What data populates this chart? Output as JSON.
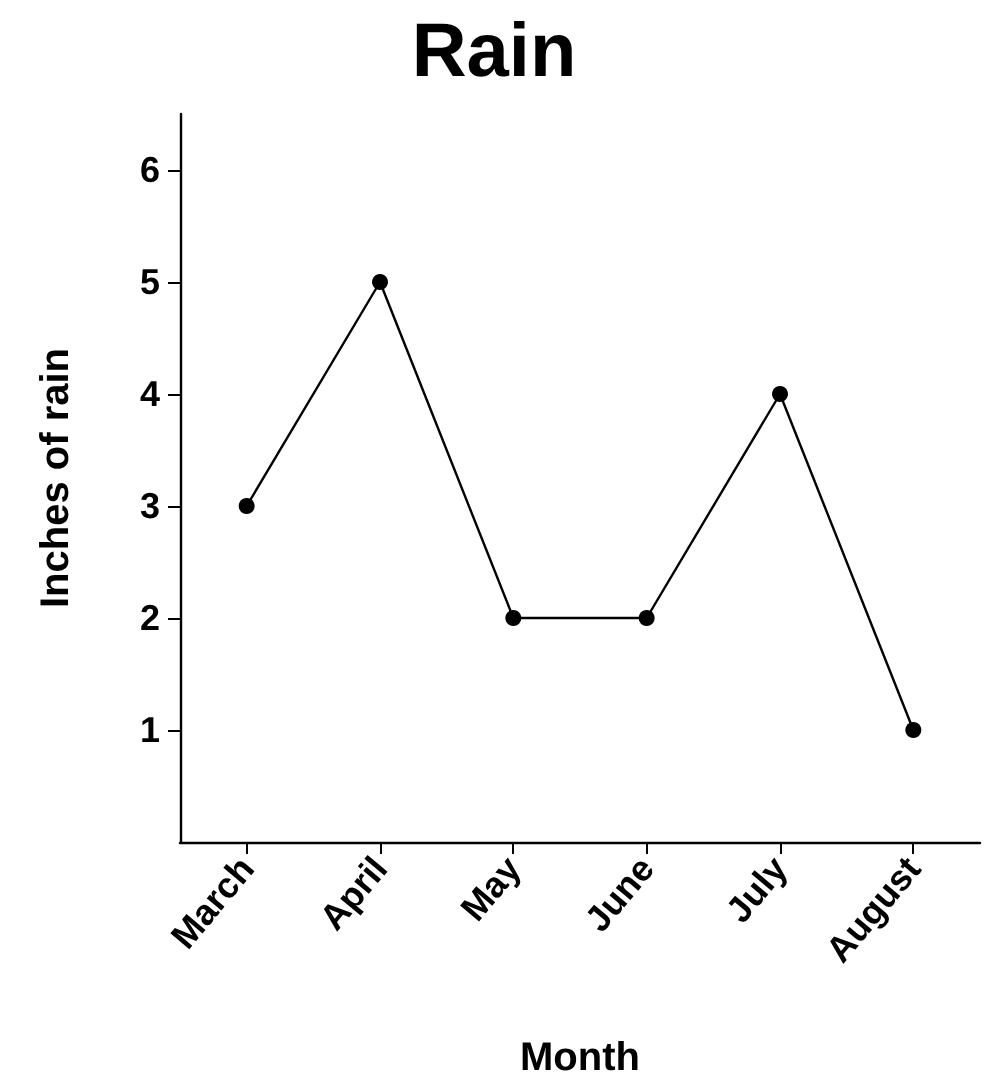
{
  "chart_data": {
    "type": "line",
    "title": "Rain",
    "xlabel": "Month",
    "ylabel": "Inches of rain",
    "categories": [
      "March",
      "April",
      "May",
      "June",
      "July",
      "August"
    ],
    "series": [
      {
        "color": "#000000",
        "values": [
          3,
          5,
          2,
          2,
          4,
          1
        ]
      }
    ],
    "ylim": [
      0,
      6.5
    ],
    "yticks": [
      1,
      2,
      3,
      4,
      5,
      6
    ],
    "grid": false,
    "marker": "circle",
    "line_style": "solid"
  }
}
